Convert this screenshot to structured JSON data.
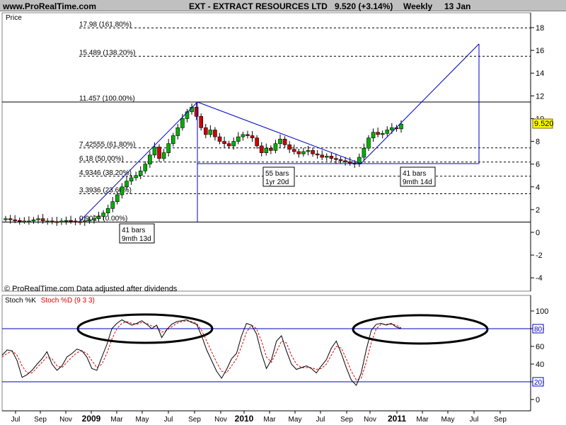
{
  "header": {
    "website": "www.ProRealTime.com",
    "instrument": "EXT - EXTRACT RESOURCES LTD",
    "price_change": "9.520 (+3.14%)",
    "period": "Weekly",
    "date": "13 Jan"
  },
  "price_panel": {
    "label": "Price",
    "copyright": "© ProRealTime.com Data adjusted after dividends",
    "last_price_tag": "9.520"
  },
  "stoch_panel": {
    "label_k": "Stoch %K",
    "label_d": "Stoch %D (9 3 3)",
    "level_high": "80",
    "level_low": "20"
  },
  "annotations": {
    "box1_line1": "41 bars",
    "box1_line2": "9mth 13d",
    "box2_line1": "55 bars",
    "box2_line2": "1yr 20d",
    "box3_line1": "41 bars",
    "box3_line2": "9mth 14d"
  },
  "colors": {
    "up_candle": "#00b000",
    "down_candle": "#d00000",
    "trend_line": "#0000c0",
    "stoch_k": "#000000",
    "stoch_d": "#e00000",
    "stoch_level": "#0000c0",
    "header_bg": "#c0c0c0"
  },
  "chart_data": [
    {
      "type": "candlestick",
      "title": "EXT - EXTRACT RESOURCES LTD",
      "ylabel": "Price",
      "ylim": [
        -5,
        19
      ],
      "yticks": [
        "18",
        "16",
        "14",
        "12",
        "10",
        "8",
        "6",
        "4",
        "2",
        "0",
        "-2",
        "-4"
      ],
      "xticks": [
        "Jul",
        "Sep",
        "Nov",
        "2009",
        "Mar",
        "May",
        "Jul",
        "Sep",
        "Nov",
        "2010",
        "Mar",
        "May",
        "Jul",
        "Sep",
        "Nov",
        "2011",
        "Mar",
        "May",
        "Jul",
        "Sep"
      ],
      "fibonacci_levels": [
        {
          "label": "17.98 (161.80%)",
          "value": 17.98
        },
        {
          "label": "15.489 (138.20%)",
          "value": 15.489
        },
        {
          "label": "11.457 (100.00%)",
          "value": 11.457
        },
        {
          "label": "7.42555 (61.80%)",
          "value": 7.4255
        },
        {
          "label": "6.18 (50.00%)",
          "value": 6.18
        },
        {
          "label": "4.9346 (38.20%)",
          "value": 4.9346
        },
        {
          "label": "3.3936 (23.60%)",
          "value": 3.3936
        },
        {
          "label": "0.9027 (0.00%)",
          "value": 0.9027
        }
      ],
      "close_series_approx": [
        1.2,
        1.1,
        1.05,
        1.0,
        1.0,
        1.0,
        1.1,
        1.2,
        1.0,
        1.0,
        0.95,
        0.9,
        1.0,
        1.05,
        1.0,
        0.95,
        0.9,
        1.0,
        1.1,
        1.2,
        1.4,
        1.7,
        2.1,
        2.7,
        3.3,
        4.0,
        4.5,
        4.8,
        5.0,
        5.4,
        6.0,
        6.8,
        7.5,
        6.5,
        7.0,
        7.8,
        8.5,
        9.2,
        10.0,
        10.6,
        11.0,
        10.2,
        9.2,
        8.6,
        9.0,
        8.4,
        8.0,
        7.8,
        7.6,
        8.0,
        8.4,
        8.6,
        8.5,
        8.3,
        7.6,
        7.0,
        7.4,
        7.2,
        7.8,
        8.2,
        7.7,
        7.3,
        7.1,
        6.9,
        7.1,
        7.2,
        6.9,
        6.8,
        6.6,
        6.7,
        6.5,
        6.4,
        6.3,
        6.2,
        6.1,
        6.0,
        6.6,
        7.4,
        8.3,
        8.8,
        8.6,
        8.7,
        9.0,
        9.2,
        9.1,
        9.52
      ],
      "last_value": 9.52
    },
    {
      "type": "line",
      "title": "Stoch %K / Stoch %D (9 3 3)",
      "ylim": [
        -8,
        112
      ],
      "yticks": [
        "100",
        "80",
        "60",
        "40",
        "20",
        "0"
      ],
      "levels": [
        80,
        20
      ],
      "series": [
        {
          "name": "Stoch %K",
          "values": [
            50,
            56,
            55,
            44,
            25,
            28,
            33,
            40,
            46,
            54,
            40,
            33,
            38,
            48,
            52,
            57,
            55,
            48,
            35,
            33,
            48,
            62,
            80,
            86,
            90,
            87,
            84,
            86,
            89,
            85,
            80,
            84,
            70,
            79,
            85,
            88,
            89,
            90,
            87,
            85,
            72,
            56,
            44,
            32,
            24,
            34,
            46,
            52,
            72,
            86,
            84,
            74,
            52,
            35,
            45,
            66,
            72,
            55,
            40,
            34,
            36,
            38,
            35,
            30,
            38,
            45,
            58,
            66,
            52,
            36,
            22,
            16,
            30,
            56,
            78,
            85,
            86,
            84,
            86,
            82,
            80
          ]
        },
        {
          "name": "Stoch %D (9 3 3)",
          "values": [
            48,
            52,
            55,
            50,
            38,
            30,
            30,
            36,
            42,
            48,
            46,
            38,
            36,
            42,
            48,
            53,
            55,
            52,
            44,
            36,
            40,
            52,
            68,
            80,
            86,
            88,
            86,
            85,
            87,
            86,
            83,
            82,
            76,
            78,
            82,
            86,
            88,
            89,
            88,
            86,
            78,
            66,
            54,
            42,
            32,
            30,
            38,
            46,
            60,
            76,
            84,
            80,
            66,
            48,
            42,
            54,
            66,
            64,
            50,
            40,
            36,
            36,
            36,
            34,
            35,
            40,
            50,
            60,
            58,
            46,
            32,
            22,
            24,
            42,
            64,
            80,
            85,
            85,
            85,
            84,
            81
          ]
        }
      ]
    }
  ]
}
